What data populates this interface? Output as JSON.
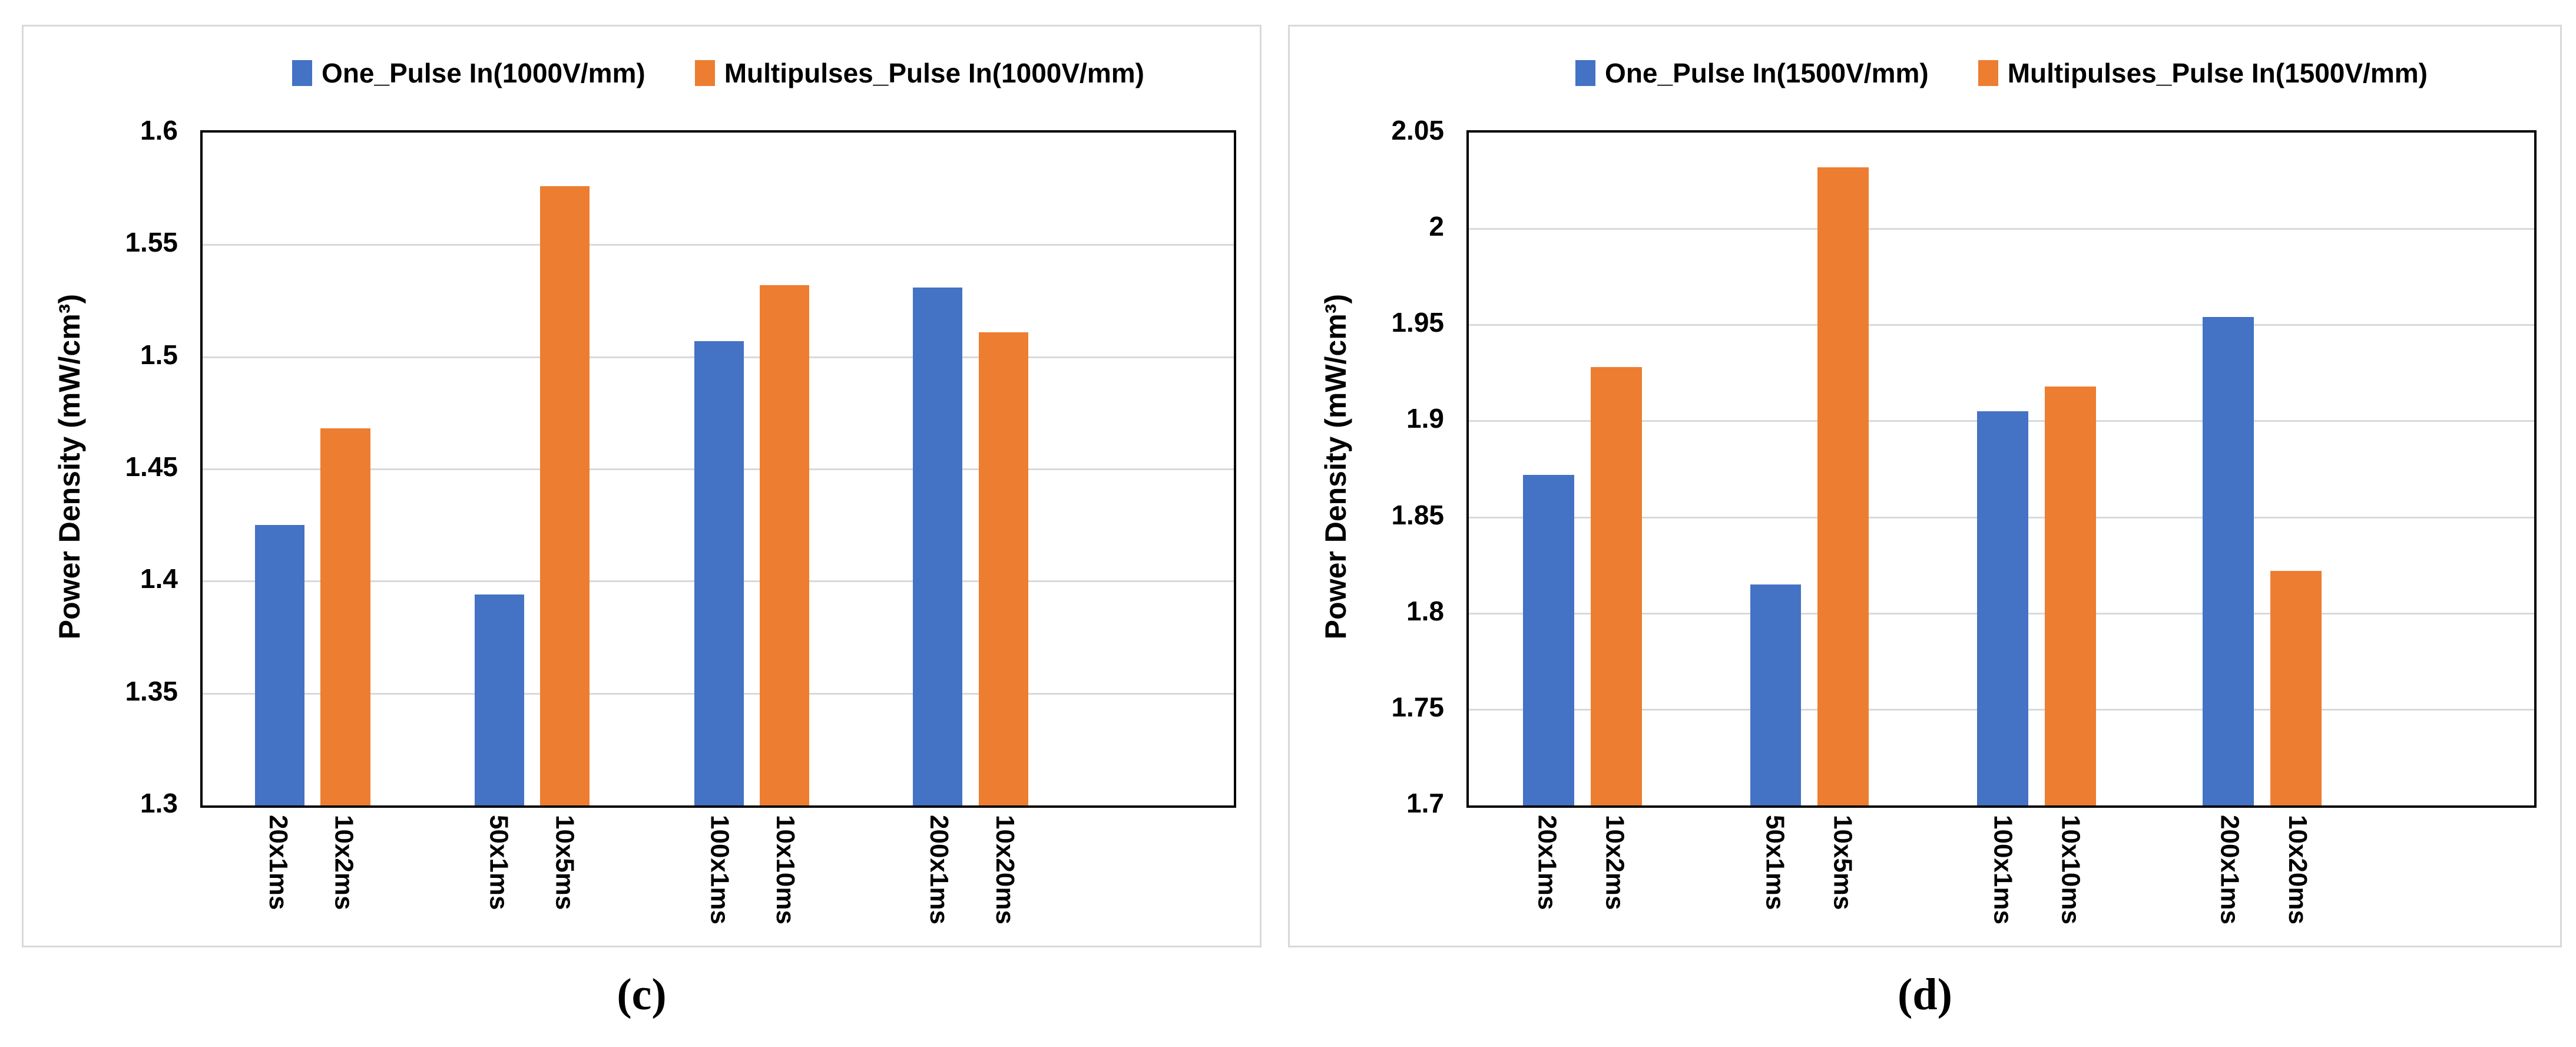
{
  "page": {
    "background": "#ffffff"
  },
  "colors": {
    "series_blue": "#4472C4",
    "series_orange": "#ED7D31",
    "gridline": "#D9D9D9",
    "plot_border": "#000000",
    "panel_border": "#D9D9D9",
    "text": "#000000"
  },
  "panels": [
    {
      "caption": "(c)"
    },
    {
      "caption": "(d)"
    }
  ],
  "chart_data": [
    {
      "type": "bar",
      "title": "",
      "xlabel": "",
      "ylabel": "Power Density (mW/cm³)",
      "ylim": [
        1.3,
        1.6
      ],
      "ytick_labels": [
        "1.6",
        "1.55",
        "1.5",
        "1.45",
        "1.4",
        "1.35",
        "1.3"
      ],
      "grid": true,
      "legend_position": "top",
      "categories": [
        "20x1ms",
        "10x2ms",
        "50x1ms",
        "10x5ms",
        "100x1ms",
        "10x10ms",
        "200x1ms",
        "10x20ms"
      ],
      "series": [
        {
          "name": "One_Pulse In(1000V/mm)",
          "color": "#4472C4",
          "values": [
            1.425,
            1.394,
            1.507,
            1.531
          ]
        },
        {
          "name": "Multipulses_Pulse In(1000V/mm)",
          "color": "#ED7D31",
          "values": [
            1.468,
            1.576,
            1.532,
            1.511
          ]
        }
      ]
    },
    {
      "type": "bar",
      "title": "",
      "xlabel": "",
      "ylabel": "Power Density (mW/cm³)",
      "ylim": [
        1.7,
        2.05
      ],
      "ytick_labels": [
        "2.05",
        "2",
        "1.95",
        "1.9",
        "1.85",
        "1.8",
        "1.75",
        "1.7"
      ],
      "grid": true,
      "legend_position": "top",
      "categories": [
        "20x1ms",
        "10x2ms",
        "50x1ms",
        "10x5ms",
        "100x1ms",
        "10x10ms",
        "200x1ms",
        "10x20ms"
      ],
      "series": [
        {
          "name": "One_Pulse In(1500V/mm)",
          "color": "#4472C4",
          "values": [
            1.872,
            1.815,
            1.905,
            1.954
          ]
        },
        {
          "name": "Multipulses_Pulse In(1500V/mm)",
          "color": "#ED7D31",
          "values": [
            1.928,
            2.032,
            1.918,
            1.822
          ]
        }
      ]
    }
  ]
}
